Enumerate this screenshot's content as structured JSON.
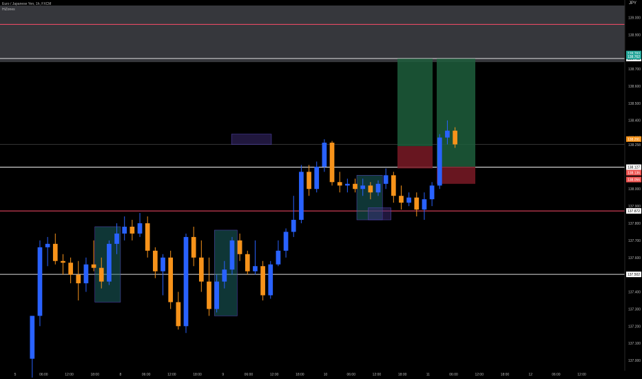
{
  "header": {
    "symbol_title": "Euro / Japanese Yen, 1h, FXCM",
    "indicator_label": "HiZones",
    "currency": "JPY"
  },
  "chart_data": {
    "type": "candlestick",
    "y_range": [
      136.94,
      139.07
    ],
    "x_range": [
      0,
      105
    ],
    "y_ticks": [
      "139.000",
      "138.900",
      "138.700",
      "138.600",
      "138.500",
      "138.400",
      "138.300",
      "138.258",
      "138.136",
      "138.000",
      "137.900",
      "137.800",
      "137.700",
      "137.600",
      "137.400",
      "137.300",
      "137.200",
      "137.100",
      "137.000"
    ],
    "x_ticks": [
      {
        "x": 0,
        "label": "5"
      },
      {
        "x": 5,
        "label": "06:00"
      },
      {
        "x": 9.5,
        "label": "12:00"
      },
      {
        "x": 14,
        "label": "18:00"
      },
      {
        "x": 18.5,
        "label": "8"
      },
      {
        "x": 23,
        "label": "06:00"
      },
      {
        "x": 27.5,
        "label": "12:00"
      },
      {
        "x": 32,
        "label": "18:00"
      },
      {
        "x": 36.5,
        "label": "9"
      },
      {
        "x": 41,
        "label": "06:00"
      },
      {
        "x": 45.5,
        "label": "12:00"
      },
      {
        "x": 50,
        "label": "18:00"
      },
      {
        "x": 54.5,
        "label": "10"
      },
      {
        "x": 59,
        "label": "06:00"
      },
      {
        "x": 63.5,
        "label": "12:00"
      },
      {
        "x": 68,
        "label": "18:00"
      },
      {
        "x": 72.5,
        "label": "11"
      },
      {
        "x": 77,
        "label": "06:00"
      },
      {
        "x": 81.5,
        "label": "12:00"
      },
      {
        "x": 86,
        "label": "18:00"
      },
      {
        "x": 90.5,
        "label": "12"
      },
      {
        "x": 95,
        "label": "06:00"
      },
      {
        "x": 99.5,
        "label": "12:00"
      }
    ],
    "candles": [
      {
        "o": 137.01,
        "h": 137.26,
        "l": 136.9,
        "c": 137.26
      },
      {
        "o": 137.26,
        "h": 137.7,
        "l": 137.2,
        "c": 137.66
      },
      {
        "o": 137.66,
        "h": 137.72,
        "l": 137.55,
        "c": 137.68
      },
      {
        "o": 137.68,
        "h": 137.74,
        "l": 137.56,
        "c": 137.58
      },
      {
        "o": 137.58,
        "h": 137.62,
        "l": 137.5,
        "c": 137.57
      },
      {
        "o": 137.57,
        "h": 137.6,
        "l": 137.45,
        "c": 137.5
      },
      {
        "o": 137.5,
        "h": 137.58,
        "l": 137.35,
        "c": 137.45
      },
      {
        "o": 137.45,
        "h": 137.6,
        "l": 137.4,
        "c": 137.56
      },
      {
        "o": 137.56,
        "h": 137.7,
        "l": 137.52,
        "c": 137.54
      },
      {
        "o": 137.54,
        "h": 137.6,
        "l": 137.42,
        "c": 137.46
      },
      {
        "o": 137.46,
        "h": 137.7,
        "l": 137.44,
        "c": 137.68
      },
      {
        "o": 137.68,
        "h": 137.8,
        "l": 137.62,
        "c": 137.74
      },
      {
        "o": 137.74,
        "h": 137.84,
        "l": 137.7,
        "c": 137.78
      },
      {
        "o": 137.78,
        "h": 137.82,
        "l": 137.7,
        "c": 137.74
      },
      {
        "o": 137.74,
        "h": 137.86,
        "l": 137.72,
        "c": 137.8
      },
      {
        "o": 137.8,
        "h": 137.84,
        "l": 137.6,
        "c": 137.64
      },
      {
        "o": 137.64,
        "h": 137.66,
        "l": 137.48,
        "c": 137.52
      },
      {
        "o": 137.52,
        "h": 137.62,
        "l": 137.38,
        "c": 137.6
      },
      {
        "o": 137.6,
        "h": 137.64,
        "l": 137.3,
        "c": 137.34
      },
      {
        "o": 137.34,
        "h": 137.4,
        "l": 137.18,
        "c": 137.2
      },
      {
        "o": 137.2,
        "h": 137.74,
        "l": 137.16,
        "c": 137.72
      },
      {
        "o": 137.72,
        "h": 137.78,
        "l": 137.55,
        "c": 137.6
      },
      {
        "o": 137.6,
        "h": 137.7,
        "l": 137.4,
        "c": 137.46
      },
      {
        "o": 137.46,
        "h": 137.6,
        "l": 137.26,
        "c": 137.3
      },
      {
        "o": 137.3,
        "h": 137.5,
        "l": 137.28,
        "c": 137.46
      },
      {
        "o": 137.46,
        "h": 137.58,
        "l": 137.42,
        "c": 137.53
      },
      {
        "o": 137.53,
        "h": 137.72,
        "l": 137.5,
        "c": 137.7
      },
      {
        "o": 137.7,
        "h": 137.74,
        "l": 137.58,
        "c": 137.62
      },
      {
        "o": 137.62,
        "h": 137.64,
        "l": 137.5,
        "c": 137.52
      },
      {
        "o": 137.52,
        "h": 137.7,
        "l": 137.5,
        "c": 137.55
      },
      {
        "o": 137.55,
        "h": 137.58,
        "l": 137.35,
        "c": 137.38
      },
      {
        "o": 137.38,
        "h": 137.58,
        "l": 137.36,
        "c": 137.56
      },
      {
        "o": 137.56,
        "h": 137.7,
        "l": 137.55,
        "c": 137.64
      },
      {
        "o": 137.64,
        "h": 137.77,
        "l": 137.6,
        "c": 137.75
      },
      {
        "o": 137.75,
        "h": 137.96,
        "l": 137.72,
        "c": 137.82
      },
      {
        "o": 137.82,
        "h": 138.14,
        "l": 137.8,
        "c": 138.1
      },
      {
        "o": 138.1,
        "h": 138.14,
        "l": 137.96,
        "c": 138.0
      },
      {
        "o": 138.0,
        "h": 138.16,
        "l": 137.98,
        "c": 138.13
      },
      {
        "o": 138.13,
        "h": 138.29,
        "l": 138.1,
        "c": 138.27
      },
      {
        "o": 138.27,
        "h": 138.28,
        "l": 138.02,
        "c": 138.04
      },
      {
        "o": 138.04,
        "h": 138.1,
        "l": 137.98,
        "c": 138.02
      },
      {
        "o": 138.02,
        "h": 138.06,
        "l": 137.98,
        "c": 138.03
      },
      {
        "o": 138.03,
        "h": 138.06,
        "l": 137.98,
        "c": 138.0
      },
      {
        "o": 138.0,
        "h": 138.06,
        "l": 137.96,
        "c": 138.02
      },
      {
        "o": 138.02,
        "h": 138.04,
        "l": 137.94,
        "c": 137.98
      },
      {
        "o": 137.98,
        "h": 138.05,
        "l": 137.96,
        "c": 138.03
      },
      {
        "o": 138.03,
        "h": 138.12,
        "l": 138.0,
        "c": 138.08
      },
      {
        "o": 138.08,
        "h": 138.1,
        "l": 137.92,
        "c": 137.96
      },
      {
        "o": 137.96,
        "h": 138.02,
        "l": 137.88,
        "c": 137.92
      },
      {
        "o": 137.92,
        "h": 137.98,
        "l": 137.9,
        "c": 137.95
      },
      {
        "o": 137.95,
        "h": 137.98,
        "l": 137.84,
        "c": 137.88
      },
      {
        "o": 137.88,
        "h": 137.98,
        "l": 137.82,
        "c": 137.94
      },
      {
        "o": 137.94,
        "h": 138.04,
        "l": 137.9,
        "c": 138.02
      },
      {
        "o": 138.02,
        "h": 138.32,
        "l": 138.0,
        "c": 138.3
      },
      {
        "o": 138.3,
        "h": 138.4,
        "l": 138.26,
        "c": 138.34
      },
      {
        "o": 138.34,
        "h": 138.36,
        "l": 138.24,
        "c": 138.26
      }
    ],
    "horizontal_lines": [
      {
        "price": 138.96,
        "color": "#ff4d6a",
        "label": ""
      },
      {
        "price": 138.761,
        "color": "#e0e0e0",
        "label": "138.761"
      },
      {
        "price": 138.127,
        "color": "#ffffff",
        "label": "138.127"
      },
      {
        "price": 137.872,
        "color": "#ff4d6a",
        "label": "137.872"
      },
      {
        "price": 137.502,
        "color": "#e0e0e0",
        "label": "137.502"
      }
    ],
    "price_tags": [
      {
        "price": 138.79,
        "text": "138.793",
        "bg": "#26a69a"
      },
      {
        "price": 138.772,
        "text": "138.762",
        "bg": "#26a69a"
      },
      {
        "price": 138.291,
        "text": "138.291",
        "bg": "#f7931a"
      },
      {
        "price": 138.095,
        "text": "138.136",
        "bg": "#ef5350"
      },
      {
        "price": 138.055,
        "text": "138.056",
        "bg": "#ef5350"
      }
    ],
    "colors": {
      "bull": "#2962ff",
      "bear": "#f7931a",
      "zone_gray": "#787b86",
      "order_block": "#3f2d7a",
      "demand_box": "#1e6b6b",
      "tp_box": "#1d5e3c",
      "sl_box": "#7a1a26"
    }
  }
}
